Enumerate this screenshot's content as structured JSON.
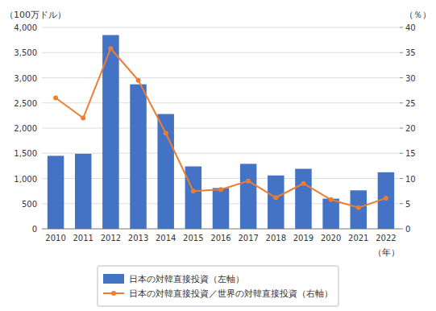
{
  "chart_data": {
    "type": "bar",
    "categories": [
      "2010",
      "2011",
      "2012",
      "2013",
      "2014",
      "2015",
      "2016",
      "2017",
      "2018",
      "2019",
      "2020",
      "2021",
      "2022"
    ],
    "series": [
      {
        "name": "日本の対韓直接投資（左軸）",
        "type": "bar",
        "color": "#4472C4",
        "values": [
          1450,
          1490,
          3848,
          2870,
          2280,
          1240,
          810,
          1290,
          1060,
          1192,
          599,
          764,
          1123
        ]
      },
      {
        "name": "日本の対韓直接投資／世界の対韓直接投資（右軸）",
        "type": "line",
        "color": "#ED7D31",
        "marker": "circle",
        "axis": "y2",
        "values": [
          26.0,
          22.0,
          35.8,
          29.5,
          19.0,
          7.5,
          7.8,
          9.5,
          6.2,
          9.0,
          5.8,
          4.2,
          6.1
        ]
      }
    ],
    "y_label": "（100万ドル）",
    "y2_label": "（％）",
    "x_label": "（年）",
    "ylim": [
      0,
      4000
    ],
    "yticks": [
      0,
      500,
      {
        "value": 1000,
        "label": "1,000"
      },
      {
        "value": 1500,
        "label": "1,500"
      },
      {
        "value": 2000,
        "label": "2,000"
      },
      {
        "value": 2500,
        "label": "2,500"
      },
      {
        "value": 3000,
        "label": "3,000"
      },
      {
        "value": 3500,
        "label": "3,500"
      },
      {
        "value": 4000,
        "label": "4,000"
      }
    ],
    "y2lim": [
      0,
      40
    ],
    "y2ticks": [
      0,
      5,
      10,
      15,
      20,
      25,
      30,
      35,
      40
    ],
    "grid": true,
    "legend": "bottom"
  }
}
